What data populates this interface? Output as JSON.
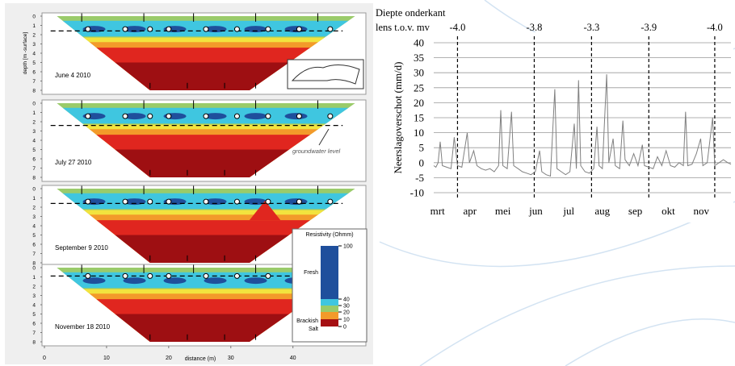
{
  "chart_data": [
    {
      "type": "resistivity",
      "ylabel": "depth [m -surface]",
      "xlabel": "distance (m)",
      "panels": [
        "June 4 2010",
        "July 27 2010",
        "September 9 2010",
        "November 18 2010"
      ],
      "ylim": [
        0,
        8
      ],
      "yticks": [
        0,
        1,
        2,
        3,
        4,
        5,
        6,
        7,
        8
      ],
      "xlim": [
        0,
        52
      ],
      "xticks": [
        0,
        10,
        20,
        30,
        40
      ],
      "annotation": "groundwater level",
      "legend": {
        "title": "Resistivity (Ohmm)",
        "ticks": [
          0,
          10,
          20,
          30,
          40,
          100
        ],
        "classes": [
          "Fresh",
          "Brackish",
          "Salt"
        ]
      }
    },
    {
      "type": "line",
      "title": "Diepte onderkant",
      "subtitle": "lens t.o.v. mv",
      "ylabel": "Neerslagoverschot (mm/d)",
      "color": "#808080",
      "x": [
        12,
        14,
        16,
        18,
        20,
        24,
        28,
        31,
        34,
        38,
        43,
        45,
        49,
        52,
        56,
        60,
        64,
        68,
        72,
        74,
        76,
        80,
        84,
        86,
        90,
        94,
        98,
        102,
        106,
        110,
        112,
        116,
        120,
        124,
        126,
        130,
        134,
        138,
        142,
        144,
        146,
        148,
        152,
        156,
        160,
        163,
        165,
        168,
        172,
        174,
        178,
        180,
        184,
        187,
        189,
        193,
        197,
        201,
        205,
        207,
        211,
        215,
        219,
        223,
        227,
        231,
        235,
        239,
        243,
        245,
        247,
        251,
        255,
        259,
        261,
        265,
        270,
        272,
        276,
        280,
        284,
        287
      ],
      "values": [
        -1,
        -1.5,
        0,
        7,
        -1,
        -1.5,
        -2,
        8.5,
        -1,
        -1.5,
        10,
        0,
        4,
        -1,
        -2,
        -2.5,
        -2,
        -3,
        -1,
        17.5,
        -1,
        -2,
        17,
        -1,
        -2,
        -3,
        -3.5,
        -4,
        -3,
        4,
        -3,
        -4,
        -4.5,
        24.5,
        -2,
        -3,
        -4,
        -3,
        13,
        -2,
        27.5,
        -1,
        -3,
        -3.5,
        -2,
        12,
        -1,
        -2,
        29.5,
        0,
        8,
        -1,
        -2,
        14,
        1,
        -1,
        3,
        -1,
        6,
        -1,
        -1.5,
        -2,
        2,
        -1,
        4,
        -1,
        -1.5,
        0,
        -1,
        17,
        -1,
        -0.5,
        3,
        8,
        -1,
        0,
        15,
        -1,
        0,
        1,
        0,
        -0.5
      ],
      "xlim": [
        12,
        287
      ],
      "xticks": [
        {
          "value": 15.5,
          "label": "mrt"
        },
        {
          "value": 45.5,
          "label": "apr"
        },
        {
          "value": 76,
          "label": "mei"
        },
        {
          "value": 106.5,
          "label": "jun"
        },
        {
          "value": 137,
          "label": "jul"
        },
        {
          "value": 168,
          "label": "aug"
        },
        {
          "value": 198.5,
          "label": "sep"
        },
        {
          "value": 229,
          "label": "okt"
        },
        {
          "value": 259.5,
          "label": "nov"
        }
      ],
      "ylim": [
        -10,
        40
      ],
      "yticks": [
        -10,
        -5,
        0,
        5,
        10,
        15,
        20,
        25,
        30,
        35,
        40
      ],
      "grid": true,
      "annotations": [
        {
          "x": 34,
          "label": "-4.0"
        },
        {
          "x": 105,
          "label": "-3.8"
        },
        {
          "x": 158,
          "label": "-3.3"
        },
        {
          "x": 211,
          "label": "-3.9"
        },
        {
          "x": 272,
          "label": "-4.0"
        }
      ]
    }
  ]
}
